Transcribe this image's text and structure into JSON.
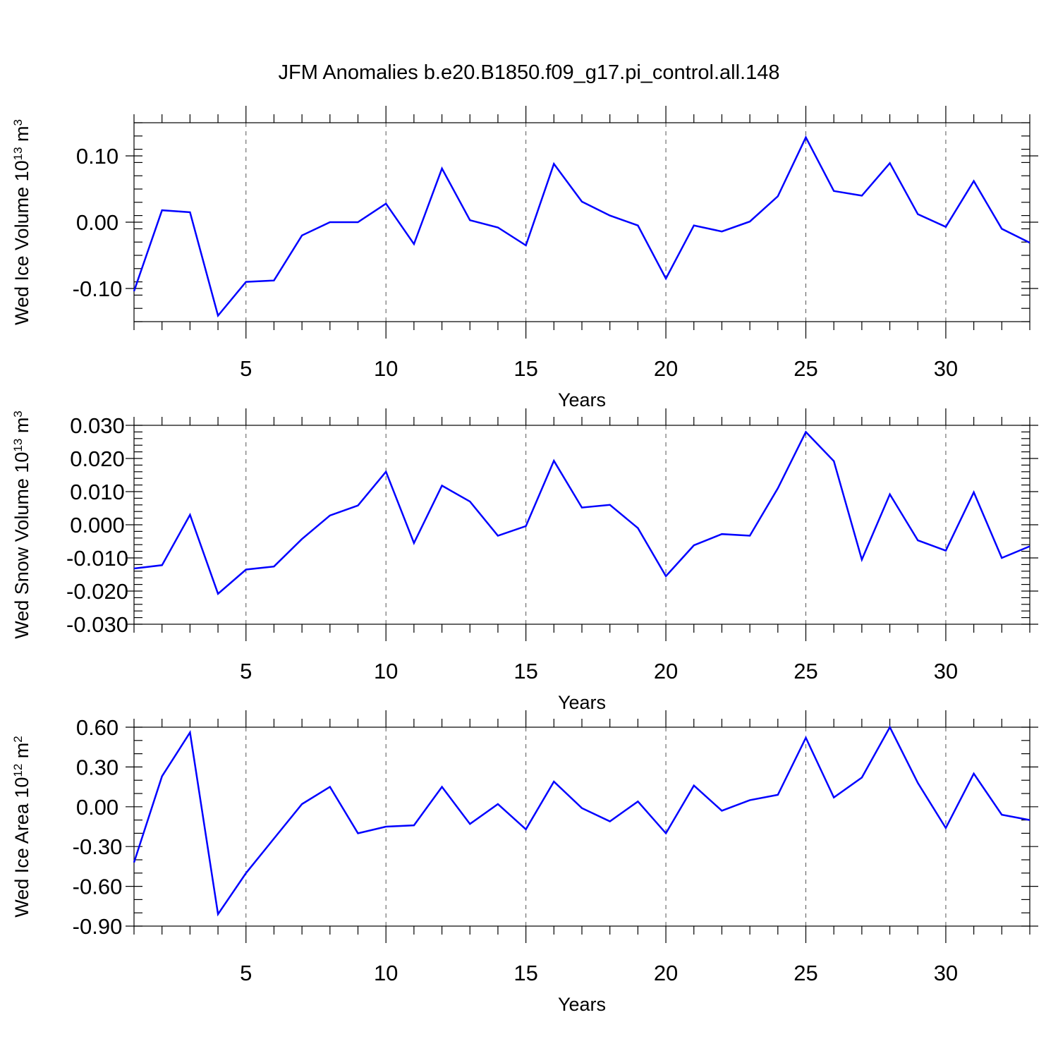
{
  "title": "JFM Anomalies b.e20.B1850.f09_g17.pi_control.all.148",
  "series_color": "#0000ff",
  "chart_data": [
    {
      "type": "line",
      "xlabel": "Years",
      "ylabel": {
        "text": "Wed Ice Volume 10",
        "exponent": "13",
        "unit": " m",
        "unit_exponent": "3"
      },
      "xlim": [
        1,
        33
      ],
      "ylim": [
        -0.15,
        0.15
      ],
      "xticks": [
        5,
        10,
        15,
        20,
        25,
        30
      ],
      "xtick_labels": [
        "5",
        "10",
        "15",
        "20",
        "25",
        "30"
      ],
      "yticks": [
        -0.1,
        0.0,
        0.1
      ],
      "ytick_labels": [
        "-0.10",
        "0.00",
        "0.10"
      ],
      "y_minor_step": 0.02,
      "grid": "vertical dashed at major x ticks",
      "x": [
        1,
        2,
        3,
        4,
        5,
        6,
        7,
        8,
        9,
        10,
        11,
        12,
        13,
        14,
        15,
        16,
        17,
        18,
        19,
        20,
        21,
        22,
        23,
        24,
        25,
        26,
        27,
        28,
        29,
        30,
        31,
        32,
        33
      ],
      "y": [
        -0.104,
        0.018,
        0.015,
        -0.141,
        -0.09,
        -0.088,
        -0.02,
        0.0,
        0.0,
        0.028,
        -0.033,
        0.081,
        0.003,
        -0.008,
        -0.035,
        0.088,
        0.031,
        0.01,
        -0.005,
        -0.085,
        -0.005,
        -0.014,
        0.001,
        0.039,
        0.128,
        0.047,
        0.04,
        0.089,
        0.012,
        -0.007,
        0.062,
        -0.01,
        -0.031
      ]
    },
    {
      "type": "line",
      "xlabel": "Years",
      "ylabel": {
        "text": "Wed Snow Volume 10",
        "exponent": "13",
        "unit": " m",
        "unit_exponent": "3"
      },
      "xlim": [
        1,
        33
      ],
      "ylim": [
        -0.03,
        0.03
      ],
      "xticks": [
        5,
        10,
        15,
        20,
        25,
        30
      ],
      "xtick_labels": [
        "5",
        "10",
        "15",
        "20",
        "25",
        "30"
      ],
      "yticks": [
        -0.03,
        -0.02,
        -0.01,
        0.0,
        0.01,
        0.02,
        0.03
      ],
      "ytick_labels": [
        "-0.030",
        "-0.020",
        "-0.010",
        "0.000",
        "0.010",
        "0.020",
        "0.030"
      ],
      "y_minor_step": 0.002,
      "grid": "vertical dashed at major x ticks",
      "x": [
        1,
        2,
        3,
        4,
        5,
        6,
        7,
        8,
        9,
        10,
        11,
        12,
        13,
        14,
        15,
        16,
        17,
        18,
        19,
        20,
        21,
        22,
        23,
        24,
        25,
        26,
        27,
        28,
        29,
        30,
        31,
        32,
        33
      ],
      "y": [
        -0.0132,
        -0.0122,
        0.003,
        -0.0208,
        -0.0135,
        -0.0126,
        -0.0043,
        0.0028,
        0.0058,
        0.016,
        -0.0055,
        0.0118,
        0.007,
        -0.0033,
        -0.0004,
        0.0193,
        0.0052,
        0.006,
        -0.001,
        -0.0155,
        -0.0062,
        -0.0028,
        -0.0033,
        0.011,
        0.028,
        0.0192,
        -0.0105,
        0.0092,
        -0.0047,
        -0.0078,
        0.0098,
        -0.01,
        -0.0065
      ]
    },
    {
      "type": "line",
      "xlabel": "Years",
      "ylabel": {
        "text": "Wed Ice Area 10",
        "exponent": "12",
        "unit": " m",
        "unit_exponent": "2"
      },
      "xlim": [
        1,
        33
      ],
      "ylim": [
        -0.9,
        0.6
      ],
      "xticks": [
        5,
        10,
        15,
        20,
        25,
        30
      ],
      "xtick_labels": [
        "5",
        "10",
        "15",
        "20",
        "25",
        "30"
      ],
      "yticks": [
        -0.9,
        -0.6,
        -0.3,
        0.0,
        0.3,
        0.6
      ],
      "ytick_labels": [
        "-0.90",
        "-0.60",
        "-0.30",
        "0.00",
        "0.30",
        "0.60"
      ],
      "y_minor_step": 0.1,
      "grid": "vertical dashed at major x ticks",
      "x": [
        1,
        2,
        3,
        4,
        5,
        6,
        7,
        8,
        9,
        10,
        11,
        12,
        13,
        14,
        15,
        16,
        17,
        18,
        19,
        20,
        21,
        22,
        23,
        24,
        25,
        26,
        27,
        28,
        29,
        30,
        31,
        32,
        33
      ],
      "y": [
        -0.42,
        0.23,
        0.56,
        -0.81,
        -0.5,
        -0.24,
        0.02,
        0.15,
        -0.2,
        -0.15,
        -0.14,
        0.15,
        -0.13,
        0.02,
        -0.17,
        0.19,
        -0.01,
        -0.11,
        0.04,
        -0.2,
        0.16,
        -0.03,
        0.05,
        0.09,
        0.52,
        0.07,
        0.22,
        0.6,
        0.18,
        -0.16,
        0.25,
        -0.06,
        -0.1
      ]
    }
  ]
}
